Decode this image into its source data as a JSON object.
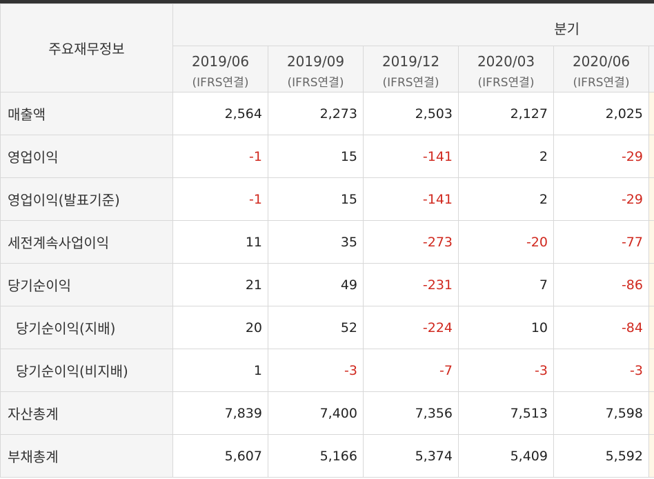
{
  "header": {
    "corner_label": "주요재무정보",
    "period_label": "분기",
    "columns": [
      {
        "date": "2019/06",
        "basis": "(IFRS연결)"
      },
      {
        "date": "2019/09",
        "basis": "(IFRS연결)"
      },
      {
        "date": "2019/12",
        "basis": "(IFRS연결)"
      },
      {
        "date": "2020/03",
        "basis": "(IFRS연결)"
      },
      {
        "date": "2020/06",
        "basis": "(IFRS연결)"
      }
    ]
  },
  "rows": [
    {
      "label": "매출액",
      "values": [
        "2,564",
        "2,273",
        "2,503",
        "2,127",
        "2,025"
      ]
    },
    {
      "label": "영업이익",
      "values": [
        "-1",
        "15",
        "-141",
        "2",
        "-29"
      ]
    },
    {
      "label": "영업이익(발표기준)",
      "values": [
        "-1",
        "15",
        "-141",
        "2",
        "-29"
      ]
    },
    {
      "label": "세전계속사업이익",
      "values": [
        "11",
        "35",
        "-273",
        "-20",
        "-77"
      ]
    },
    {
      "label": "당기순이익",
      "values": [
        "21",
        "49",
        "-231",
        "7",
        "-86"
      ]
    },
    {
      "label": "당기순이익(지배)",
      "values": [
        "20",
        "52",
        "-224",
        "10",
        "-84"
      ]
    },
    {
      "label": "당기순이익(비지배)",
      "values": [
        "1",
        "-3",
        "-7",
        "-3",
        "-3"
      ]
    },
    {
      "label": "자산총계",
      "values": [
        "7,839",
        "7,400",
        "7,356",
        "7,513",
        "7,598"
      ]
    },
    {
      "label": "부채총계",
      "values": [
        "5,607",
        "5,166",
        "5,374",
        "5,409",
        "5,592"
      ]
    }
  ],
  "colors": {
    "negative": "#d0281e",
    "header_bg": "#f5f5f5",
    "border": "#d8d8d8"
  }
}
